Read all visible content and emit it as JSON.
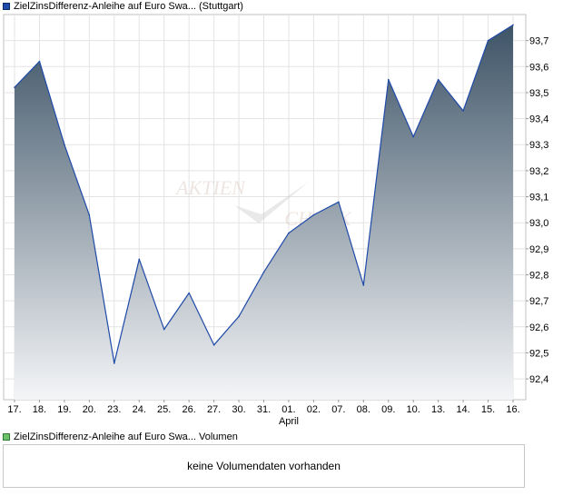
{
  "legend_price": {
    "name": "ZielZinsDifferenz-Anleihe auf Euro Swa...",
    "exchange": "(Stuttgart)",
    "color": "#1f4aa8"
  },
  "legend_volume": {
    "name": "ZielZinsDifferenz-Anleihe auf Euro Swa...",
    "label": "Volumen",
    "color": "#6cc26c"
  },
  "volume_panel": {
    "message": "keine Volumendaten vorhanden"
  },
  "watermark": {
    "text_top": "AKTIEN",
    "text_bottom": "CHECK"
  },
  "chart_data": {
    "type": "area",
    "categories": [
      "17.",
      "18.",
      "19.",
      "20.",
      "23.",
      "24.",
      "25.",
      "26.",
      "27.",
      "30.",
      "31.",
      "01.",
      "02.",
      "07.",
      "08.",
      "09.",
      "10.",
      "13.",
      "14.",
      "15.",
      "16."
    ],
    "month_labels": [
      {
        "index": 11,
        "label": "April"
      }
    ],
    "series": [
      {
        "values": [
          93.52,
          93.62,
          93.3,
          93.03,
          92.46,
          92.86,
          92.59,
          92.73,
          92.53,
          92.64,
          92.81,
          92.96,
          93.03,
          93.08,
          92.76,
          93.55,
          93.33,
          93.55,
          93.43,
          93.7,
          93.76
        ],
        "line_color": "#1f4aa8",
        "fill_top_color": "#3e5467",
        "fill_bottom_color": "#f4f5f7"
      }
    ],
    "y_ticks": [
      "92,4",
      "92,5",
      "92,6",
      "92,7",
      "92,8",
      "92,9",
      "93,0",
      "93,1",
      "93,2",
      "93,3",
      "93,4",
      "93,5",
      "93,6",
      "93,7"
    ],
    "y_tick_values": [
      92.4,
      92.5,
      92.6,
      92.7,
      92.8,
      92.9,
      93.0,
      93.1,
      93.2,
      93.3,
      93.4,
      93.5,
      93.6,
      93.7
    ],
    "ylim": [
      92.32,
      93.8
    ],
    "y_axis_position": "right",
    "grid": true,
    "title": "",
    "xlabel": "",
    "ylabel": ""
  }
}
